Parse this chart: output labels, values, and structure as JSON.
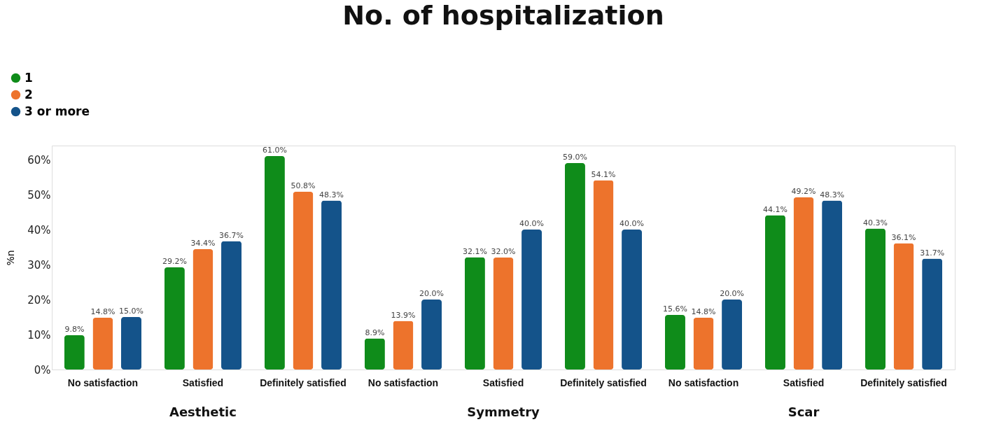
{
  "chart_data": {
    "type": "bar",
    "title": "No. of hospitalization",
    "ylabel": "%n",
    "categories": [
      "No satisfaction",
      "Satisfied",
      "Definitely satisfied",
      "No satisfaction",
      "Satisfied",
      "Definitely satisfied",
      "No satisfaction",
      "Satisfied",
      "Definitely satisfied"
    ],
    "series": [
      {
        "name": "1",
        "color": "#0f8c1a",
        "values": [
          9.8,
          29.2,
          61.0,
          8.9,
          32.1,
          59.0,
          15.6,
          44.1,
          40.3
        ],
        "value_labels": [
          "9.8%",
          "29.2%",
          "61.0%",
          "8.9%",
          "32.1%",
          "59.0%",
          "15.6%",
          "44.1%",
          "40.3%"
        ]
      },
      {
        "name": "2",
        "color": "#ed732c",
        "values": [
          14.8,
          34.4,
          50.8,
          13.9,
          32.0,
          54.1,
          14.8,
          49.2,
          36.1
        ],
        "value_labels": [
          "14.8%",
          "34.4%",
          "50.8%",
          "13.9%",
          "32.0%",
          "54.1%",
          "14.8%",
          "49.2%",
          "36.1%"
        ]
      },
      {
        "name": "3 or more",
        "color": "#14538a",
        "values": [
          15.0,
          36.7,
          48.3,
          20.0,
          40.0,
          40.0,
          20.0,
          48.3,
          31.7
        ],
        "value_labels": [
          "15.0%",
          "36.7%",
          "48.3%",
          "20.0%",
          "40.0%",
          "40.0%",
          "20.0%",
          "48.3%",
          "31.7%"
        ]
      }
    ],
    "ylim": [
      0,
      64
    ],
    "yticks": [
      {
        "value": 0,
        "label": "0%"
      },
      {
        "value": 10,
        "label": "10%"
      },
      {
        "value": 20,
        "label": "20%"
      },
      {
        "value": 30,
        "label": "30%"
      },
      {
        "value": 40,
        "label": "40%"
      },
      {
        "value": 50,
        "label": "50%"
      },
      {
        "value": 60,
        "label": "60%"
      }
    ],
    "annotations": [
      "Aesthetic",
      "Symmetry",
      "Scar"
    ],
    "legend": "top left",
    "grid": false
  }
}
